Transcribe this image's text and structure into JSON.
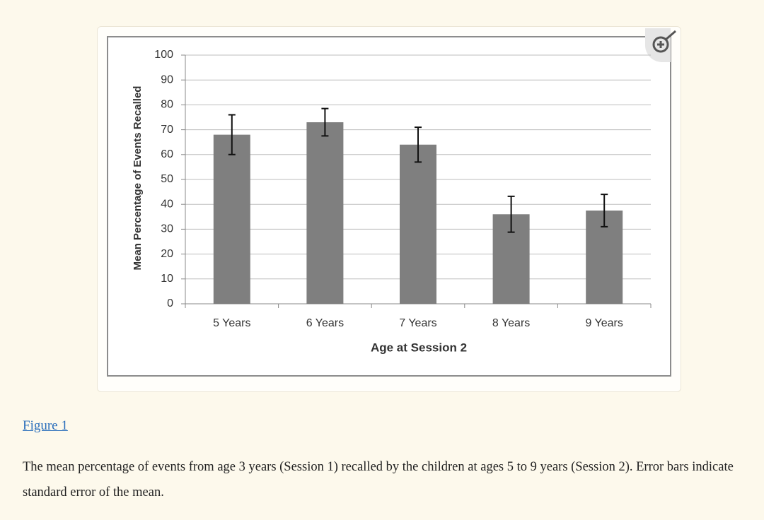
{
  "chart_data": {
    "type": "bar",
    "categories": [
      "5 Years",
      "6 Years",
      "7 Years",
      "8 Years",
      "9 Years"
    ],
    "values": [
      68,
      73,
      64,
      36,
      37.5
    ],
    "errors": [
      8,
      5.5,
      7,
      7.2,
      6.5
    ],
    "color": "#7f7f7f",
    "ylim": [
      0,
      100
    ],
    "yticks": [
      0,
      10,
      20,
      30,
      40,
      50,
      60,
      70,
      80,
      90,
      100
    ],
    "grid": true,
    "xlabel": "Age at Session 2",
    "ylabel": "Mean Percentage of Events Recalled"
  },
  "figure_link": "Figure 1",
  "caption": "The mean percentage of events from age 3 years (Session 1) recalled by the children at ages 5 to 9 years (Session 2). Error bars indicate standard error of the mean."
}
